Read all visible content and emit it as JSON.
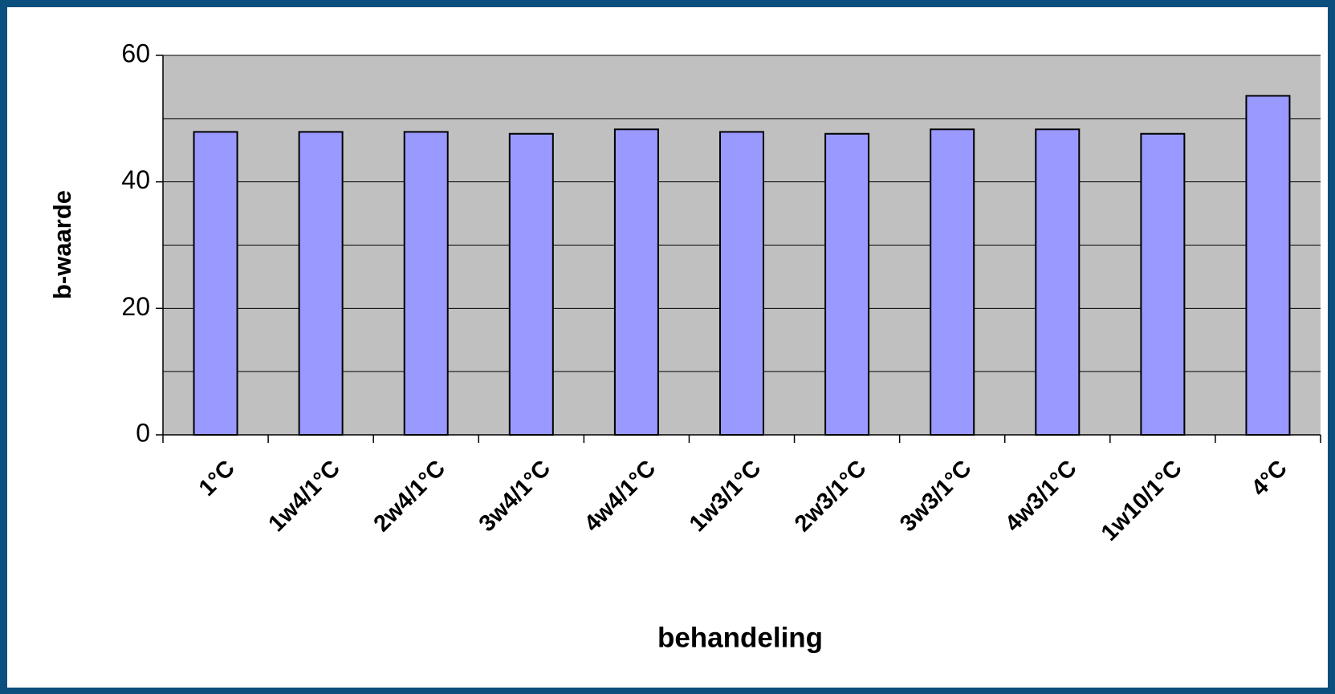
{
  "chart_data": {
    "type": "bar",
    "categories": [
      "1°C",
      "1w4/1°C",
      "2w4/1°C",
      "3w4/1°C",
      "4w4/1°C",
      "1w3/1°C",
      "2w3/1°C",
      "3w3/1°C",
      "4w3/1°C",
      "1w10/1°C",
      "4°C"
    ],
    "values": [
      47.9,
      47.9,
      47.9,
      47.6,
      48.3,
      47.9,
      47.6,
      48.3,
      48.3,
      47.6,
      53.6
    ],
    "color": "#9999ff",
    "xlabel": "behandeling",
    "ylabel": "b-waarde",
    "ylim": [
      0,
      60
    ],
    "yticks": [
      0,
      20,
      40,
      60
    ],
    "ygrid": [
      0,
      10,
      20,
      30,
      40,
      50,
      60
    ],
    "grid": true,
    "plot_background": "#c0c0c0"
  }
}
